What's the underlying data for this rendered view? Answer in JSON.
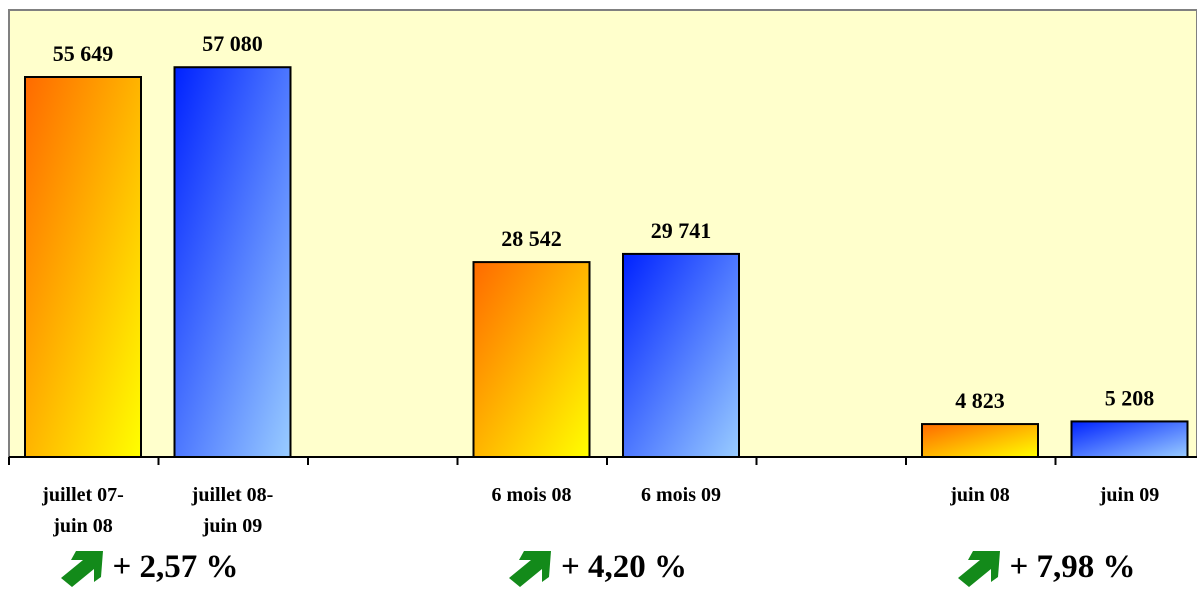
{
  "chart_data": {
    "type": "bar",
    "groups": [
      {
        "categories": [
          "juillet 07-\njuin 08",
          "juillet 08-\njuin 09"
        ],
        "values": [
          55649,
          57080
        ],
        "value_labels": [
          "55 649",
          "57 080"
        ],
        "growth": "+ 2,57 %"
      },
      {
        "categories": [
          "6 mois 08",
          "6 mois 09"
        ],
        "values": [
          28542,
          29741
        ],
        "value_labels": [
          "28 542",
          "29 741"
        ],
        "growth": "+ 4,20 %"
      },
      {
        "categories": [
          "juin 08",
          "juin 09"
        ],
        "values": [
          4823,
          5208
        ],
        "value_labels": [
          "4 823",
          "5 208"
        ],
        "growth": "+ 7,98 %"
      }
    ],
    "ylim": [
      0,
      60000
    ],
    "grid": false,
    "colors": {
      "plot_background": "#ffffcc",
      "series_1_gradient": [
        "#ff6a00",
        "#ffff00"
      ],
      "series_2_gradient": [
        "#0022ff",
        "#99ccff"
      ],
      "growth_arrow": "#138a1a"
    }
  },
  "icons": {
    "growth_arrow": "up-right-arrow-icon"
  }
}
